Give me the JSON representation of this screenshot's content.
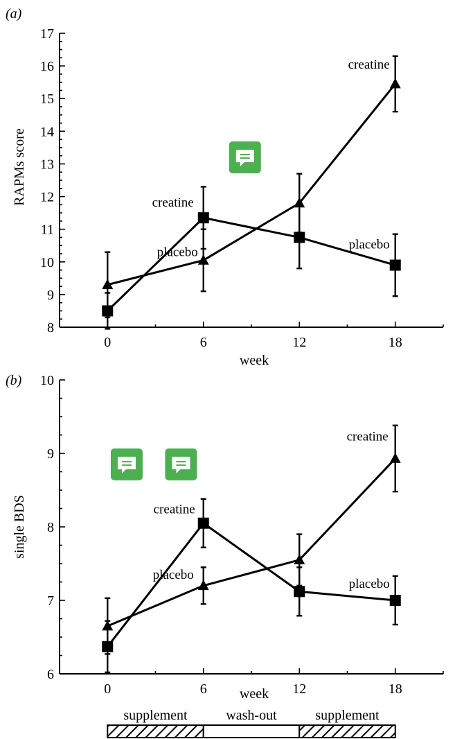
{
  "chart_data": [
    {
      "panel_label": "(a)",
      "type": "line",
      "ylabel": "RAPMs score",
      "xlabel": "week",
      "x": [
        0,
        6,
        12,
        18
      ],
      "xlim": [
        -3,
        21
      ],
      "ylim": [
        8,
        17
      ],
      "yticks": [
        8,
        9,
        10,
        11,
        12,
        13,
        14,
        15,
        16,
        17
      ],
      "xticks": [
        0,
        6,
        12,
        18
      ],
      "series": [
        {
          "marker": "triangle",
          "values": [
            9.3,
            10.05,
            11.8,
            15.45
          ],
          "errors": [
            1.0,
            0.95,
            0.9,
            0.85
          ],
          "labels": [
            {
              "text": "placebo",
              "at_index": 1
            },
            {
              "text": "creatine",
              "at_index": 3
            }
          ]
        },
        {
          "marker": "square",
          "values": [
            8.5,
            11.35,
            10.75,
            9.9
          ],
          "errors": [
            0.55,
            0.95,
            0.95,
            0.95
          ],
          "labels": [
            {
              "text": "creatine",
              "at_index": 1
            },
            {
              "text": "placebo",
              "at_index": 3
            }
          ]
        }
      ],
      "comment_icons": [
        {
          "icon": "comment-icon",
          "x": 8.6,
          "y": 13.2
        }
      ]
    },
    {
      "panel_label": "(b)",
      "type": "line",
      "ylabel": "single BDS",
      "xlabel": "week",
      "x": [
        0,
        6,
        12,
        18
      ],
      "xlim": [
        -3,
        21
      ],
      "ylim": [
        6,
        10
      ],
      "yticks": [
        6,
        7,
        8,
        9,
        10
      ],
      "xticks": [
        0,
        6,
        12,
        18
      ],
      "series": [
        {
          "marker": "triangle",
          "values": [
            6.65,
            7.2,
            7.55,
            8.93
          ],
          "errors": [
            0.38,
            0.25,
            0.35,
            0.45
          ],
          "labels": [
            {
              "text": "placebo",
              "at_index": 1
            },
            {
              "text": "creatine",
              "at_index": 3
            }
          ]
        },
        {
          "marker": "square",
          "values": [
            6.37,
            8.05,
            7.12,
            7.0
          ],
          "errors": [
            0.35,
            0.33,
            0.33,
            0.33
          ],
          "labels": [
            {
              "text": "creatine",
              "at_index": 1
            },
            {
              "text": "placebo",
              "at_index": 3
            }
          ]
        }
      ],
      "comment_icons": [
        {
          "icon": "comment-icon",
          "x": 1.2,
          "y": 8.85
        },
        {
          "icon": "comment-icon",
          "x": 4.6,
          "y": 8.85
        }
      ]
    }
  ],
  "phase_bar": [
    {
      "label": "supplement",
      "x_start": 0,
      "x_end": 6,
      "hatched": true
    },
    {
      "label": "wash-out",
      "x_start": 6,
      "x_end": 12,
      "hatched": false
    },
    {
      "label": "supplement",
      "x_start": 12,
      "x_end": 18,
      "hatched": true
    }
  ],
  "colors": {
    "ink": "#000000",
    "comment_icon": "#4caf50"
  }
}
